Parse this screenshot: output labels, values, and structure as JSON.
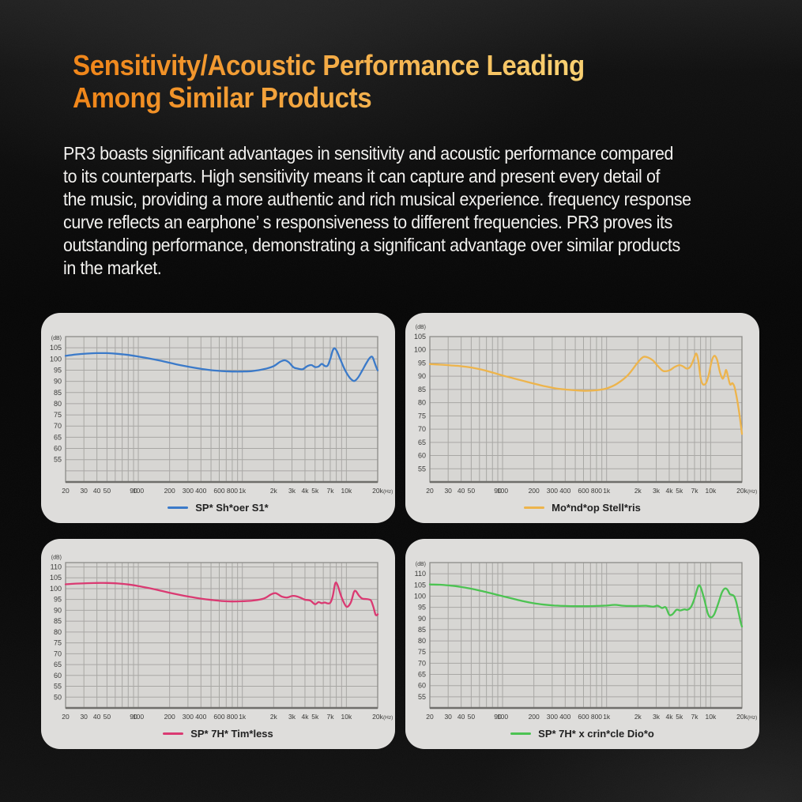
{
  "page": {
    "heading_line1": "Sensitivity/Acoustic Performance Leading",
    "heading_line2": "Among Similar Products",
    "heading_color_start": "#f0871b",
    "heading_color_end": "#f8cf70",
    "text_color": "#f2f1ef",
    "paragraph_lines": [
      "PR3 boasts significant advantages in sensitivity and acoustic performance compared",
      "to its counterparts. High sensitivity means it can capture and present every detail of",
      "the music, providing a more authentic and rich musical experience. frequency response",
      "curve reflects an earphone’ s responsiveness to different frequencies. PR3 proves its",
      "outstanding performance, demonstrating a significant advantage over similar products",
      "in the market."
    ]
  },
  "chart_data": [
    {
      "type": "line",
      "name": "SP* Sh*oer S1*",
      "color": "#3b7ac9",
      "x_scale": "log",
      "xlim": [
        20,
        20000
      ],
      "ylim": [
        45,
        110
      ],
      "y_unit": "(dB)",
      "x_unit": "(Hz)",
      "yticks": [
        105,
        100,
        95,
        90,
        85,
        80,
        75,
        70,
        65,
        60,
        55
      ],
      "xticks": [
        [
          20,
          "20"
        ],
        [
          30,
          "30"
        ],
        [
          40,
          "40"
        ],
        [
          50,
          "50"
        ],
        [
          90,
          "90"
        ],
        [
          100,
          "100"
        ],
        [
          200,
          "200"
        ],
        [
          300,
          "300"
        ],
        [
          400,
          "400"
        ],
        [
          600,
          "600"
        ],
        [
          800,
          "800"
        ],
        [
          1000,
          "1k"
        ],
        [
          2000,
          "2k"
        ],
        [
          3000,
          "3k"
        ],
        [
          4000,
          "4k"
        ],
        [
          5000,
          "5k"
        ],
        [
          7000,
          "7k"
        ],
        [
          10000,
          "10k"
        ],
        [
          20000,
          "20k"
        ]
      ],
      "points": [
        [
          20,
          101.4
        ],
        [
          25,
          102.0
        ],
        [
          32,
          102.4
        ],
        [
          40,
          102.6
        ],
        [
          50,
          102.6
        ],
        [
          63,
          102.3
        ],
        [
          80,
          101.8
        ],
        [
          100,
          101.1
        ],
        [
          125,
          100.3
        ],
        [
          160,
          99.3
        ],
        [
          200,
          98.3
        ],
        [
          250,
          97.3
        ],
        [
          315,
          96.4
        ],
        [
          400,
          95.6
        ],
        [
          500,
          95.0
        ],
        [
          630,
          94.6
        ],
        [
          800,
          94.4
        ],
        [
          1000,
          94.4
        ],
        [
          1250,
          94.6
        ],
        [
          1600,
          95.4
        ],
        [
          2000,
          96.8
        ],
        [
          2300,
          98.7
        ],
        [
          2550,
          99.4
        ],
        [
          2800,
          98.5
        ],
        [
          3100,
          96.3
        ],
        [
          3400,
          95.7
        ],
        [
          3800,
          95.4
        ],
        [
          4200,
          96.8
        ],
        [
          4600,
          97.3
        ],
        [
          5000,
          96.4
        ],
        [
          5400,
          96.6
        ],
        [
          5800,
          97.8
        ],
        [
          6200,
          96.9
        ],
        [
          6600,
          97.0
        ],
        [
          7000,
          100.0
        ],
        [
          7400,
          103.8
        ],
        [
          7700,
          104.8
        ],
        [
          8100,
          103.5
        ],
        [
          8800,
          99.5
        ],
        [
          9600,
          95.5
        ],
        [
          10500,
          92.3
        ],
        [
          11300,
          90.6
        ],
        [
          12000,
          90.2
        ],
        [
          13000,
          91.8
        ],
        [
          14200,
          94.8
        ],
        [
          15500,
          98.0
        ],
        [
          16800,
          100.5
        ],
        [
          17800,
          100.9
        ],
        [
          18800,
          98.0
        ],
        [
          19500,
          96.0
        ],
        [
          20000,
          94.9
        ]
      ]
    },
    {
      "type": "line",
      "name": "Mo*nd*op Stell*ris",
      "color": "#edb44c",
      "x_scale": "log",
      "xlim": [
        20,
        20000
      ],
      "ylim": [
        50,
        105
      ],
      "y_unit": "(dB)",
      "x_unit": "(Hz)",
      "yticks": [
        105,
        100,
        95,
        90,
        85,
        80,
        75,
        70,
        65,
        60,
        55
      ],
      "xticks": [
        [
          20,
          "20"
        ],
        [
          30,
          "30"
        ],
        [
          40,
          "40"
        ],
        [
          50,
          "50"
        ],
        [
          90,
          "90"
        ],
        [
          100,
          "100"
        ],
        [
          200,
          "200"
        ],
        [
          300,
          "300"
        ],
        [
          400,
          "400"
        ],
        [
          600,
          "600"
        ],
        [
          800,
          "800"
        ],
        [
          1000,
          "1k"
        ],
        [
          2000,
          "2k"
        ],
        [
          3000,
          "3k"
        ],
        [
          4000,
          "4k"
        ],
        [
          5000,
          "5k"
        ],
        [
          7000,
          "7k"
        ],
        [
          10000,
          "10k"
        ],
        [
          20000,
          "20k"
        ]
      ],
      "points": [
        [
          20,
          94.6
        ],
        [
          25,
          94.4
        ],
        [
          32,
          94.1
        ],
        [
          40,
          93.8
        ],
        [
          50,
          93.3
        ],
        [
          63,
          92.5
        ],
        [
          80,
          91.4
        ],
        [
          100,
          90.3
        ],
        [
          125,
          89.3
        ],
        [
          160,
          88.2
        ],
        [
          200,
          87.2
        ],
        [
          250,
          86.3
        ],
        [
          315,
          85.5
        ],
        [
          400,
          85.0
        ],
        [
          500,
          84.7
        ],
        [
          630,
          84.5
        ],
        [
          800,
          84.7
        ],
        [
          1000,
          85.4
        ],
        [
          1250,
          87.1
        ],
        [
          1600,
          90.4
        ],
        [
          2000,
          95.3
        ],
        [
          2250,
          97.3
        ],
        [
          2500,
          97.1
        ],
        [
          2800,
          95.9
        ],
        [
          3100,
          93.9
        ],
        [
          3500,
          92.0
        ],
        [
          4000,
          92.2
        ],
        [
          4500,
          93.5
        ],
        [
          5000,
          94.2
        ],
        [
          5400,
          93.8
        ],
        [
          5900,
          92.9
        ],
        [
          6400,
          93.7
        ],
        [
          6900,
          96.6
        ],
        [
          7250,
          98.6
        ],
        [
          7600,
          96.0
        ],
        [
          8000,
          89.5
        ],
        [
          8400,
          87.0
        ],
        [
          9000,
          87.3
        ],
        [
          9600,
          90.5
        ],
        [
          10200,
          95.5
        ],
        [
          10800,
          97.7
        ],
        [
          11500,
          96.4
        ],
        [
          12300,
          91.5
        ],
        [
          13000,
          89.1
        ],
        [
          13600,
          90.4
        ],
        [
          14100,
          92.4
        ],
        [
          14700,
          89.8
        ],
        [
          15400,
          86.9
        ],
        [
          16200,
          87.4
        ],
        [
          17000,
          85.8
        ],
        [
          18000,
          81.0
        ],
        [
          19000,
          75.0
        ],
        [
          20000,
          68.2
        ]
      ]
    },
    {
      "type": "line",
      "name": "SP* 7H* Tim*less",
      "color": "#da3a72",
      "x_scale": "log",
      "xlim": [
        20,
        20000
      ],
      "ylim": [
        45,
        112
      ],
      "y_unit": "(dB)",
      "x_unit": "(Hz)",
      "yticks": [
        110,
        105,
        100,
        95,
        90,
        85,
        80,
        75,
        70,
        65,
        60,
        55,
        50
      ],
      "xticks": [
        [
          20,
          "20"
        ],
        [
          30,
          "30"
        ],
        [
          40,
          "40"
        ],
        [
          50,
          "50"
        ],
        [
          90,
          "90"
        ],
        [
          100,
          "100"
        ],
        [
          200,
          "200"
        ],
        [
          300,
          "300"
        ],
        [
          400,
          "400"
        ],
        [
          600,
          "600"
        ],
        [
          800,
          "800"
        ],
        [
          1000,
          "1k"
        ],
        [
          2000,
          "2k"
        ],
        [
          3000,
          "3k"
        ],
        [
          4000,
          "4k"
        ],
        [
          5000,
          "5k"
        ],
        [
          7000,
          "7k"
        ],
        [
          10000,
          "10k"
        ],
        [
          20000,
          "20k"
        ]
      ],
      "points": [
        [
          20,
          102.0
        ],
        [
          25,
          102.3
        ],
        [
          32,
          102.5
        ],
        [
          40,
          102.6
        ],
        [
          50,
          102.6
        ],
        [
          63,
          102.4
        ],
        [
          80,
          101.9
        ],
        [
          100,
          101.2
        ],
        [
          125,
          100.3
        ],
        [
          160,
          99.2
        ],
        [
          200,
          98.1
        ],
        [
          250,
          97.1
        ],
        [
          315,
          96.2
        ],
        [
          400,
          95.4
        ],
        [
          500,
          94.8
        ],
        [
          630,
          94.3
        ],
        [
          800,
          94.1
        ],
        [
          1000,
          94.2
        ],
        [
          1250,
          94.5
        ],
        [
          1600,
          95.4
        ],
        [
          1900,
          97.4
        ],
        [
          2100,
          97.9
        ],
        [
          2400,
          96.3
        ],
        [
          2700,
          95.9
        ],
        [
          3000,
          96.6
        ],
        [
          3300,
          96.5
        ],
        [
          3700,
          95.6
        ],
        [
          4000,
          94.9
        ],
        [
          4500,
          94.5
        ],
        [
          5000,
          92.8
        ],
        [
          5400,
          93.8
        ],
        [
          5800,
          93.3
        ],
        [
          6200,
          93.6
        ],
        [
          6600,
          93.2
        ],
        [
          7000,
          93.5
        ],
        [
          7400,
          96.5
        ],
        [
          7800,
          102.3
        ],
        [
          8200,
          101.8
        ],
        [
          9000,
          96.0
        ],
        [
          10000,
          91.7
        ],
        [
          11000,
          93.5
        ],
        [
          11800,
          98.3
        ],
        [
          12300,
          98.9
        ],
        [
          13200,
          96.8
        ],
        [
          14200,
          95.4
        ],
        [
          15500,
          95.2
        ],
        [
          16500,
          95.0
        ],
        [
          17300,
          94.4
        ],
        [
          18200,
          91.5
        ],
        [
          19000,
          88.2
        ],
        [
          19600,
          87.7
        ],
        [
          20000,
          88.2
        ]
      ]
    },
    {
      "type": "line",
      "name": "SP* 7H* x crin*cle Dio*o",
      "color": "#4cc352",
      "x_scale": "log",
      "xlim": [
        20,
        20000
      ],
      "ylim": [
        50,
        115
      ],
      "y_unit": "(dB)",
      "x_unit": "(Hz)",
      "yticks": [
        110,
        105,
        100,
        95,
        90,
        85,
        80,
        75,
        70,
        65,
        60,
        55
      ],
      "xticks": [
        [
          20,
          "20"
        ],
        [
          30,
          "30"
        ],
        [
          40,
          "40"
        ],
        [
          50,
          "50"
        ],
        [
          90,
          "90"
        ],
        [
          100,
          "100"
        ],
        [
          200,
          "200"
        ],
        [
          300,
          "300"
        ],
        [
          400,
          "400"
        ],
        [
          600,
          "600"
        ],
        [
          800,
          "800"
        ],
        [
          1000,
          "1k"
        ],
        [
          2000,
          "2k"
        ],
        [
          3000,
          "3k"
        ],
        [
          4000,
          "4k"
        ],
        [
          5000,
          "5k"
        ],
        [
          7000,
          "7k"
        ],
        [
          10000,
          "10k"
        ],
        [
          20000,
          "20k"
        ]
      ],
      "points": [
        [
          20,
          105.2
        ],
        [
          25,
          105.1
        ],
        [
          32,
          104.7
        ],
        [
          40,
          104.1
        ],
        [
          50,
          103.3
        ],
        [
          63,
          102.3
        ],
        [
          80,
          101.1
        ],
        [
          100,
          100.0
        ],
        [
          125,
          98.9
        ],
        [
          160,
          97.7
        ],
        [
          200,
          96.8
        ],
        [
          250,
          96.2
        ],
        [
          315,
          95.8
        ],
        [
          400,
          95.6
        ],
        [
          500,
          95.5
        ],
        [
          630,
          95.5
        ],
        [
          800,
          95.6
        ],
        [
          1000,
          95.8
        ],
        [
          1200,
          96.1
        ],
        [
          1450,
          95.7
        ],
        [
          1700,
          95.6
        ],
        [
          2000,
          95.6
        ],
        [
          2400,
          95.7
        ],
        [
          2800,
          95.3
        ],
        [
          3100,
          95.7
        ],
        [
          3400,
          94.7
        ],
        [
          3700,
          95.0
        ],
        [
          4000,
          91.7
        ],
        [
          4300,
          91.9
        ],
        [
          4700,
          93.9
        ],
        [
          5100,
          93.6
        ],
        [
          5600,
          94.1
        ],
        [
          6000,
          93.9
        ],
        [
          6500,
          95.3
        ],
        [
          7000,
          99.0
        ],
        [
          7600,
          104.4
        ],
        [
          8000,
          104.1
        ],
        [
          8700,
          98.5
        ],
        [
          9400,
          92.3
        ],
        [
          10000,
          90.5
        ],
        [
          10800,
          91.8
        ],
        [
          11800,
          96.5
        ],
        [
          12800,
          101.5
        ],
        [
          13700,
          103.4
        ],
        [
          14500,
          102.9
        ],
        [
          15300,
          100.9
        ],
        [
          16000,
          100.6
        ],
        [
          16800,
          100.0
        ],
        [
          17600,
          97.5
        ],
        [
          18600,
          92.5
        ],
        [
          19400,
          88.5
        ],
        [
          20000,
          86.4
        ]
      ]
    }
  ]
}
